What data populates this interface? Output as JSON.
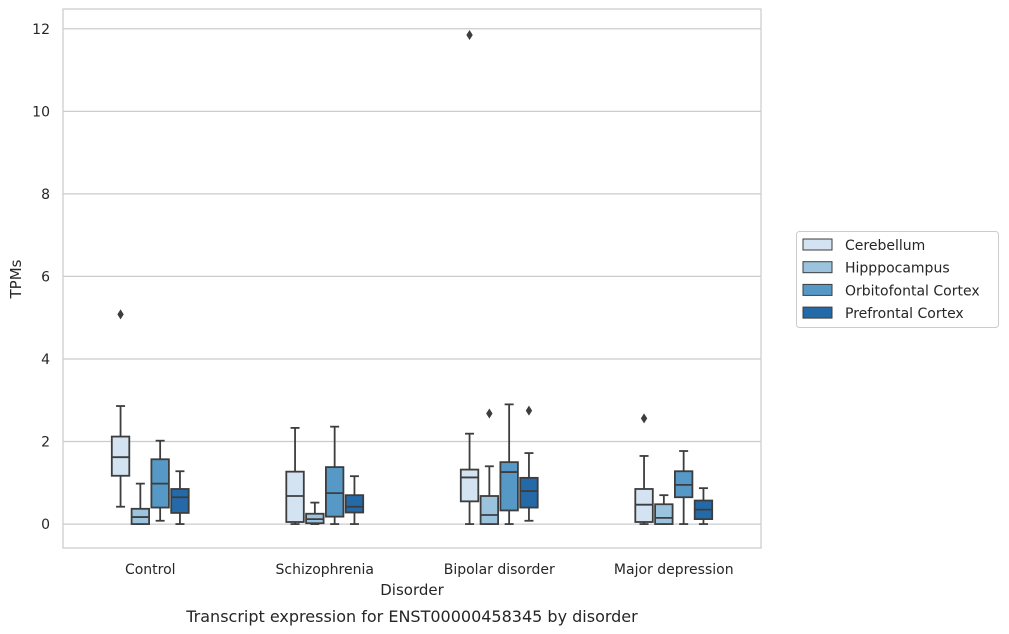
{
  "chart_data": {
    "type": "box",
    "caption": "Transcript expression for ENST00000458345 by disorder",
    "xlabel": "Disorder",
    "ylabel": "TPMs",
    "ylim": [
      -0.58,
      12.48
    ],
    "yticks": [
      0,
      2,
      4,
      6,
      8,
      10,
      12
    ],
    "ytick_labels": [
      "0",
      "2",
      "4",
      "6",
      "8",
      "10",
      "12"
    ],
    "grid": true,
    "legend_position": "right",
    "categories": [
      "Control",
      "Schizophrenia",
      "Bipolar disorder",
      "Major depression"
    ],
    "series": [
      {
        "name": "Cerebellum",
        "color": "#d3e3f1",
        "boxes": [
          {
            "whisker_low": 0.42,
            "q1": 1.17,
            "median": 1.62,
            "q3": 2.12,
            "whisker_high": 2.86,
            "outliers": [
              5.08
            ]
          },
          {
            "whisker_low": 0.0,
            "q1": 0.05,
            "median": 0.68,
            "q3": 1.27,
            "whisker_high": 2.33,
            "outliers": []
          },
          {
            "whisker_low": 0.0,
            "q1": 0.55,
            "median": 1.13,
            "q3": 1.32,
            "whisker_high": 2.19,
            "outliers": [
              11.85
            ]
          },
          {
            "whisker_low": 0.0,
            "q1": 0.05,
            "median": 0.47,
            "q3": 0.85,
            "whisker_high": 1.65,
            "outliers": [
              2.56
            ]
          }
        ]
      },
      {
        "name": "Hipppocampus",
        "color": "#9cc3dd",
        "boxes": [
          {
            "whisker_low": 0.0,
            "q1": 0.0,
            "median": 0.17,
            "q3": 0.37,
            "whisker_high": 0.98,
            "outliers": []
          },
          {
            "whisker_low": 0.0,
            "q1": 0.02,
            "median": 0.12,
            "q3": 0.25,
            "whisker_high": 0.52,
            "outliers": []
          },
          {
            "whisker_low": 0.0,
            "q1": 0.0,
            "median": 0.22,
            "q3": 0.68,
            "whisker_high": 1.4,
            "outliers": [
              2.68
            ]
          },
          {
            "whisker_low": 0.0,
            "q1": 0.0,
            "median": 0.15,
            "q3": 0.48,
            "whisker_high": 0.7,
            "outliers": []
          }
        ]
      },
      {
        "name": "Orbitofontal Cortex",
        "color": "#5799c6",
        "boxes": [
          {
            "whisker_low": 0.08,
            "q1": 0.4,
            "median": 0.98,
            "q3": 1.57,
            "whisker_high": 2.02,
            "outliers": []
          },
          {
            "whisker_low": 0.0,
            "q1": 0.18,
            "median": 0.75,
            "q3": 1.38,
            "whisker_high": 2.36,
            "outliers": []
          },
          {
            "whisker_low": 0.0,
            "q1": 0.33,
            "median": 1.26,
            "q3": 1.5,
            "whisker_high": 2.9,
            "outliers": []
          },
          {
            "whisker_low": 0.0,
            "q1": 0.65,
            "median": 0.95,
            "q3": 1.28,
            "whisker_high": 1.77,
            "outliers": []
          }
        ]
      },
      {
        "name": "Prefrontal Cortex",
        "color": "#2469a8",
        "boxes": [
          {
            "whisker_low": 0.0,
            "q1": 0.27,
            "median": 0.65,
            "q3": 0.85,
            "whisker_high": 1.28,
            "outliers": []
          },
          {
            "whisker_low": 0.0,
            "q1": 0.28,
            "median": 0.42,
            "q3": 0.7,
            "whisker_high": 1.16,
            "outliers": []
          },
          {
            "whisker_low": 0.08,
            "q1": 0.4,
            "median": 0.8,
            "q3": 1.12,
            "whisker_high": 1.72,
            "outliers": [
              2.75
            ]
          },
          {
            "whisker_low": 0.0,
            "q1": 0.12,
            "median": 0.35,
            "q3": 0.57,
            "whisker_high": 0.87,
            "outliers": []
          }
        ]
      }
    ]
  }
}
